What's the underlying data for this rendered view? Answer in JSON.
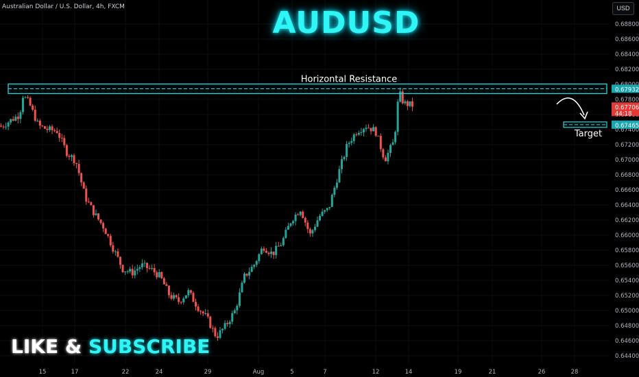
{
  "header": {
    "symbol_info": "Australian Dollar / U.S. Dollar, 4h, FXCM",
    "title": "AUDUSD",
    "currency_button": "USD"
  },
  "footer": {
    "like_text": "LIKE & ",
    "subscribe_text": "SUBSCRIBE"
  },
  "colors": {
    "background": "#000000",
    "up_candle": "#26a69a",
    "down_candle": "#ef5350",
    "accent": "#2ff5f5",
    "axis_text": "#b2b5be"
  },
  "chart_data": {
    "type": "candlestick",
    "title": "AUDUSD",
    "x_tick_labels": [
      "15",
      "17",
      "22",
      "24",
      "29",
      "Aug",
      "5",
      "7",
      "12",
      "14",
      "19",
      "21",
      "26",
      "28"
    ],
    "y_tick_labels": [
      "0.68800",
      "0.68600",
      "0.68400",
      "0.68200",
      "0.68000",
      "0.67800",
      "0.67600",
      "0.67400",
      "0.67200",
      "0.67000",
      "0.66800",
      "0.66600",
      "0.66400",
      "0.66200",
      "0.66000",
      "0.65800",
      "0.65600",
      "0.65400",
      "0.65200",
      "0.65000",
      "0.64800",
      "0.64600",
      "0.64400"
    ],
    "ylim": [
      0.6435,
      0.69
    ],
    "annotations": {
      "resistance_label": "Horizontal Resistance",
      "resistance_level": 0.67932,
      "resistance_price_label": "0.67932",
      "target_label": "Target",
      "target_level": 0.67465,
      "target_price_label": "0.67465",
      "current_price_label": "0.67706",
      "countdown_label": "44:18"
    },
    "price_path": [
      [
        15,
        0.676
      ],
      [
        15.3,
        0.6786
      ],
      [
        16,
        0.6775
      ],
      [
        17,
        0.6745
      ],
      [
        18,
        0.674
      ],
      [
        19,
        0.6738
      ],
      [
        20,
        0.671
      ],
      [
        21,
        0.6698
      ],
      [
        22,
        0.665
      ],
      [
        23,
        0.6628
      ],
      [
        24,
        0.661
      ],
      [
        25,
        0.6582
      ],
      [
        26,
        0.6555
      ],
      [
        27,
        0.655
      ],
      [
        28,
        0.656
      ],
      [
        29,
        0.6555
      ],
      [
        30,
        0.6545
      ],
      [
        31,
        0.652
      ],
      [
        32,
        0.6512
      ],
      [
        33,
        0.6525
      ],
      [
        34,
        0.6505
      ],
      [
        35,
        0.649
      ],
      [
        36,
        0.6465
      ],
      [
        37,
        0.648
      ],
      [
        38,
        0.65
      ],
      [
        39,
        0.6545
      ],
      [
        40,
        0.656
      ],
      [
        41,
        0.6585
      ],
      [
        42,
        0.6575
      ],
      [
        43,
        0.659
      ],
      [
        44,
        0.662
      ],
      [
        45,
        0.6635
      ],
      [
        46,
        0.66
      ],
      [
        47,
        0.6625
      ],
      [
        48,
        0.6635
      ],
      [
        49,
        0.668
      ],
      [
        50,
        0.672
      ],
      [
        51,
        0.6738
      ],
      [
        52,
        0.6745
      ],
      [
        53,
        0.6738
      ],
      [
        54,
        0.67
      ],
      [
        55,
        0.6725
      ],
      [
        55.5,
        0.679
      ],
      [
        56,
        0.6775
      ],
      [
        57,
        0.6772
      ]
    ]
  }
}
